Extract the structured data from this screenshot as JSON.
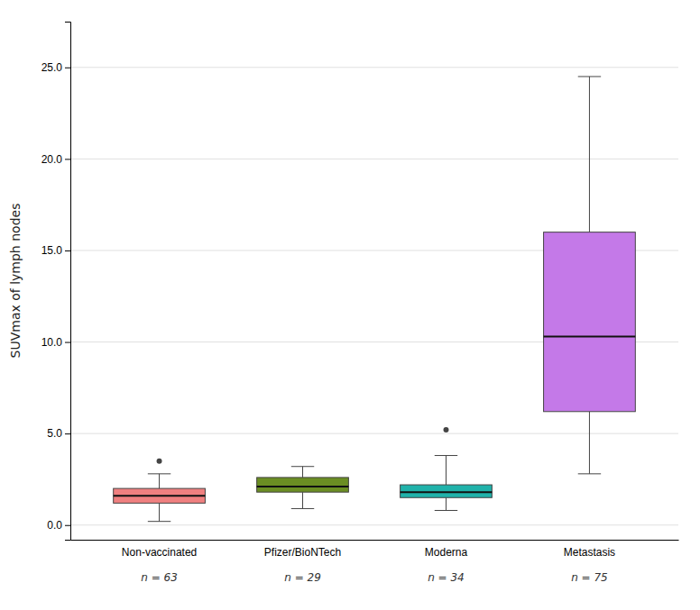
{
  "chart_data": {
    "type": "box",
    "categories": [
      "Non-vaccinated",
      "Pfizer/BioNTech",
      "Moderna",
      "Metastasis"
    ],
    "annotations": [
      "n = 63",
      "n = 29",
      "n = 34",
      "n = 75"
    ],
    "colors": [
      "#F08080",
      "#6B8E23",
      "#20B2AA",
      "#C479E8"
    ],
    "boxes": [
      {
        "whislo": 0.2,
        "q1": 1.2,
        "med": 1.6,
        "q3": 2.0,
        "whishi": 2.8,
        "fliers": [
          3.5
        ]
      },
      {
        "whislo": 0.9,
        "q1": 1.8,
        "med": 2.1,
        "q3": 2.6,
        "whishi": 3.2,
        "fliers": []
      },
      {
        "whislo": 0.8,
        "q1": 1.5,
        "med": 1.8,
        "q3": 2.2,
        "whishi": 3.8,
        "fliers": [
          5.2
        ]
      },
      {
        "whislo": 2.8,
        "q1": 6.2,
        "med": 10.3,
        "q3": 16.0,
        "whishi": 24.5,
        "fliers": []
      }
    ],
    "ylim": [
      -0.8,
      27.5
    ],
    "yticks": [
      {
        "value": 0.0,
        "label": "0.0"
      },
      {
        "value": 5.0,
        "label": "5.0"
      },
      {
        "value": 10.0,
        "label": "10.0"
      },
      {
        "value": 15.0,
        "label": "15.0"
      },
      {
        "value": 20.0,
        "label": "20.0"
      },
      {
        "value": 25.0,
        "label": "25.0"
      }
    ],
    "y_label": "SUVmax of lymph nodes",
    "grid": true
  }
}
